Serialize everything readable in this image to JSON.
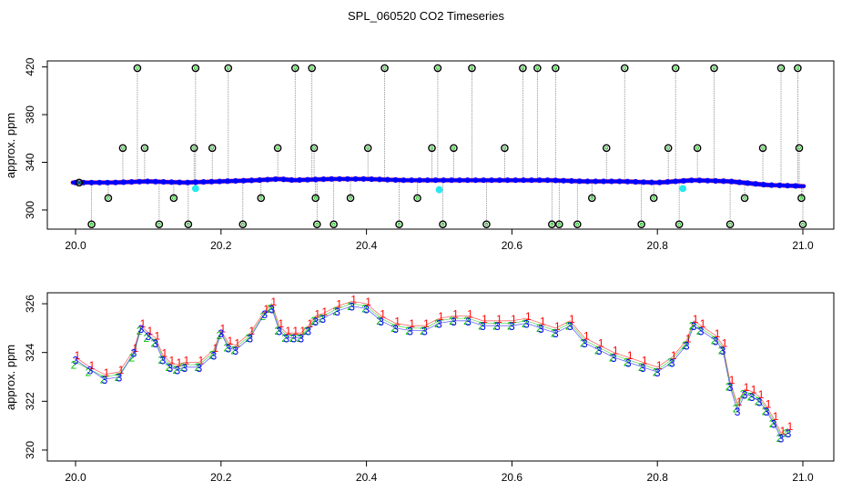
{
  "title": "SPL_060520  CO2 Timeseries",
  "colors": {
    "frame": "#000000",
    "blue": "#0000ff",
    "red": "#ff0000",
    "green": "#00c000",
    "cyan": "#00e5ee",
    "gray": "#909090",
    "orange": "#ffa500"
  },
  "chart_data": [
    {
      "type": "scatter",
      "title": "SPL_060520  CO2 Timeseries",
      "xlabel": "",
      "ylabel": "approx. ppm",
      "xlim": [
        20.0,
        21.0
      ],
      "ylim": [
        287,
        422
      ],
      "xticks": [
        "20.0",
        "20.2",
        "20.4",
        "20.6",
        "20.8",
        "21.0"
      ],
      "yticks": [
        "300",
        "340",
        "380",
        "420"
      ],
      "ytick_values": [
        300,
        340,
        380,
        420
      ],
      "grid": false,
      "baseline_series": {
        "name": "",
        "x": [
          20.0,
          20.05,
          20.1,
          20.15,
          20.2,
          20.25,
          20.28,
          20.3,
          20.35,
          20.4,
          20.45,
          20.5,
          20.55,
          20.6,
          20.65,
          20.7,
          20.75,
          20.8,
          20.85,
          20.9,
          20.95,
          21.0
        ],
        "y": [
          323,
          323,
          324,
          323,
          324,
          325,
          326,
          325,
          326,
          326,
          325,
          325,
          325,
          325,
          325,
          324,
          324,
          323,
          325,
          324,
          321,
          320
        ]
      },
      "outliers": {
        "x": [
          20.005,
          20.022,
          20.045,
          20.065,
          20.085,
          20.095,
          20.115,
          20.135,
          20.155,
          20.163,
          20.165,
          20.188,
          20.21,
          20.23,
          20.255,
          20.278,
          20.302,
          20.325,
          20.328,
          20.33,
          20.332,
          20.355,
          20.378,
          20.402,
          20.425,
          20.445,
          20.47,
          20.49,
          20.498,
          20.505,
          20.52,
          20.545,
          20.565,
          20.59,
          20.615,
          20.635,
          20.655,
          20.66,
          20.665,
          20.69,
          20.71,
          20.73,
          20.755,
          20.778,
          20.795,
          20.815,
          20.825,
          20.83,
          20.855,
          20.878,
          20.9,
          20.92,
          20.945,
          20.97,
          20.993,
          20.995,
          20.998,
          21.0
        ],
        "y": [
          323,
          288,
          310,
          352,
          419,
          352,
          288,
          310,
          288,
          352,
          419,
          352,
          419,
          288,
          310,
          352,
          419,
          419,
          352,
          310,
          288,
          288,
          310,
          352,
          419,
          288,
          310,
          352,
          419,
          288,
          352,
          419,
          288,
          352,
          419,
          419,
          288,
          419,
          288,
          288,
          310,
          352,
          419,
          288,
          310,
          352,
          419,
          288,
          352,
          419,
          288,
          310,
          352,
          419,
          419,
          352,
          310,
          288
        ]
      },
      "cyan_points": {
        "x": [
          20.165,
          20.5,
          20.835
        ],
        "y": [
          318,
          317,
          318
        ]
      }
    },
    {
      "type": "scatter",
      "title": "",
      "xlabel": "",
      "ylabel": "approx. ppm",
      "xlim": [
        20.0,
        21.0
      ],
      "ylim": [
        319.7,
        326.3
      ],
      "xticks": [
        "20.0",
        "20.2",
        "20.4",
        "20.6",
        "20.8",
        "21.0"
      ],
      "yticks": [
        "320",
        "322",
        "324",
        "326"
      ],
      "ytick_values": [
        320,
        322,
        324,
        326
      ],
      "grid": false,
      "series": [
        {
          "name": "1",
          "x": [
            20.0,
            20.02,
            20.04,
            20.06,
            20.08,
            20.09,
            20.1,
            20.11,
            20.12,
            20.13,
            20.14,
            20.15,
            20.17,
            20.19,
            20.2,
            20.21,
            20.22,
            20.24,
            20.26,
            20.27,
            20.28,
            20.29,
            20.3,
            20.31,
            20.32,
            20.33,
            20.34,
            20.36,
            20.38,
            20.4,
            20.42,
            20.44,
            20.46,
            20.48,
            20.5,
            20.52,
            20.54,
            20.56,
            20.58,
            20.6,
            20.62,
            20.64,
            20.66,
            20.68,
            20.7,
            20.72,
            20.74,
            20.76,
            20.78,
            20.8,
            20.82,
            20.84,
            20.85,
            20.86,
            20.88,
            20.89,
            20.9,
            20.91,
            20.92,
            20.93,
            20.94,
            20.95,
            20.96,
            20.97,
            20.98
          ],
          "y": [
            323.8,
            323.4,
            323.1,
            323.2,
            324.1,
            325.1,
            324.8,
            324.6,
            323.9,
            323.6,
            323.5,
            323.6,
            323.6,
            324.1,
            324.9,
            324.4,
            324.3,
            324.8,
            325.7,
            326.0,
            325.1,
            324.8,
            324.8,
            324.8,
            325.1,
            325.5,
            325.6,
            325.9,
            326.1,
            326.0,
            325.5,
            325.2,
            325.1,
            325.1,
            325.4,
            325.5,
            325.5,
            325.3,
            325.3,
            325.3,
            325.4,
            325.2,
            325.0,
            325.3,
            324.6,
            324.3,
            324.0,
            323.8,
            323.6,
            323.4,
            323.8,
            324.5,
            325.3,
            325.1,
            324.7,
            324.3,
            322.8,
            321.9,
            322.5,
            322.4,
            322.2,
            321.8,
            321.3,
            320.7,
            320.9
          ]
        },
        {
          "name": "2",
          "x": [
            20.0,
            20.02,
            20.04,
            20.06,
            20.08,
            20.09,
            20.1,
            20.11,
            20.12,
            20.13,
            20.14,
            20.15,
            20.17,
            20.19,
            20.2,
            20.21,
            20.22,
            20.24,
            20.26,
            20.27,
            20.28,
            20.29,
            20.3,
            20.31,
            20.32,
            20.33,
            20.34,
            20.36,
            20.38,
            20.4,
            20.42,
            20.44,
            20.46,
            20.48,
            20.5,
            20.52,
            20.54,
            20.56,
            20.58,
            20.6,
            20.62,
            20.64,
            20.66,
            20.68,
            20.7,
            20.72,
            20.74,
            20.76,
            20.78,
            20.8,
            20.82,
            20.84,
            20.85,
            20.86,
            20.88,
            20.89,
            20.9,
            20.91,
            20.92,
            20.93,
            20.94,
            20.95,
            20.96,
            20.97,
            20.98
          ],
          "y": [
            323.6,
            323.3,
            323.0,
            323.1,
            323.9,
            325.0,
            324.7,
            324.5,
            323.8,
            323.5,
            323.4,
            323.5,
            323.5,
            324.0,
            324.8,
            324.3,
            324.2,
            324.7,
            325.6,
            325.9,
            325.0,
            324.7,
            324.7,
            324.7,
            325.0,
            325.4,
            325.5,
            325.8,
            326.0,
            325.9,
            325.4,
            325.1,
            325.0,
            325.0,
            325.3,
            325.4,
            325.4,
            325.2,
            325.2,
            325.2,
            325.3,
            325.1,
            324.9,
            325.2,
            324.5,
            324.2,
            323.9,
            323.7,
            323.5,
            323.3,
            323.7,
            324.4,
            325.2,
            325.0,
            324.6,
            324.2,
            322.7,
            321.8,
            322.4,
            322.3,
            322.1,
            321.7,
            321.2,
            320.6,
            320.8
          ]
        },
        {
          "name": "3",
          "x": [
            20.0,
            20.02,
            20.04,
            20.06,
            20.08,
            20.09,
            20.1,
            20.11,
            20.12,
            20.13,
            20.14,
            20.15,
            20.17,
            20.19,
            20.2,
            20.21,
            20.22,
            20.24,
            20.26,
            20.27,
            20.28,
            20.29,
            20.3,
            20.31,
            20.32,
            20.33,
            20.34,
            20.36,
            20.38,
            20.4,
            20.42,
            20.44,
            20.46,
            20.48,
            20.5,
            20.52,
            20.54,
            20.56,
            20.58,
            20.6,
            20.62,
            20.64,
            20.66,
            20.68,
            20.7,
            20.72,
            20.74,
            20.76,
            20.78,
            20.8,
            20.82,
            20.84,
            20.85,
            20.86,
            20.88,
            20.89,
            20.9,
            20.91,
            20.92,
            20.93,
            20.94,
            20.95,
            20.96,
            20.97,
            20.98
          ],
          "y": [
            323.7,
            323.3,
            322.9,
            323.0,
            324.0,
            325.0,
            324.7,
            324.4,
            323.7,
            323.4,
            323.3,
            323.4,
            323.4,
            323.9,
            324.8,
            324.2,
            324.1,
            324.6,
            325.6,
            325.8,
            324.9,
            324.6,
            324.6,
            324.6,
            324.9,
            325.3,
            325.4,
            325.7,
            325.9,
            325.8,
            325.3,
            325.0,
            324.9,
            324.9,
            325.2,
            325.3,
            325.3,
            325.1,
            325.1,
            325.1,
            325.2,
            325.0,
            324.8,
            325.1,
            324.4,
            324.1,
            323.8,
            323.6,
            323.4,
            323.2,
            323.6,
            324.3,
            325.1,
            324.9,
            324.5,
            324.1,
            322.6,
            321.6,
            322.3,
            322.2,
            322.0,
            321.6,
            321.1,
            320.5,
            320.7
          ]
        }
      ]
    }
  ]
}
